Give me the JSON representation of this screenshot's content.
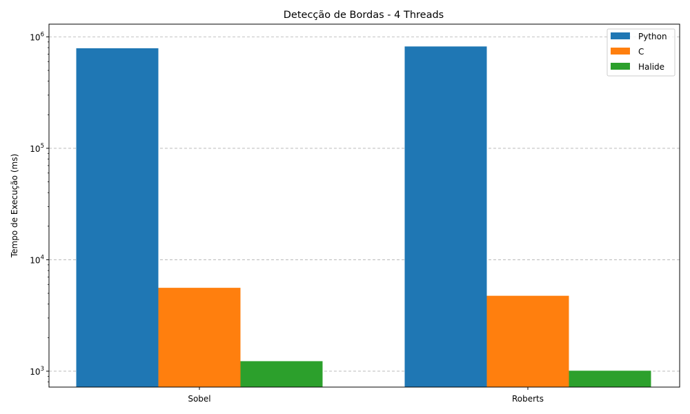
{
  "chart_data": {
    "type": "bar",
    "title": "Detecção de Bordas - 4 Threads",
    "xlabel": "",
    "ylabel": "Tempo de Execução (ms)",
    "yscale": "log",
    "ylim": [
      720,
      1300000
    ],
    "yticks": [
      {
        "value": 1000,
        "base": "10",
        "exp": "3"
      },
      {
        "value": 10000,
        "base": "10",
        "exp": "4"
      },
      {
        "value": 100000,
        "base": "10",
        "exp": "5"
      },
      {
        "value": 1000000,
        "base": "10",
        "exp": "6"
      }
    ],
    "categories": [
      "Sobel",
      "Roberts"
    ],
    "series": [
      {
        "name": "Python",
        "color": "#1f77b4",
        "values": [
          790000,
          820000
        ]
      },
      {
        "name": "C",
        "color": "#ff7f0e",
        "values": [
          5600,
          4750
        ]
      },
      {
        "name": "Halide",
        "color": "#2ca02c",
        "values": [
          1230,
          1010
        ]
      }
    ],
    "grid": "y-major-dashed",
    "legend": "top-right"
  }
}
